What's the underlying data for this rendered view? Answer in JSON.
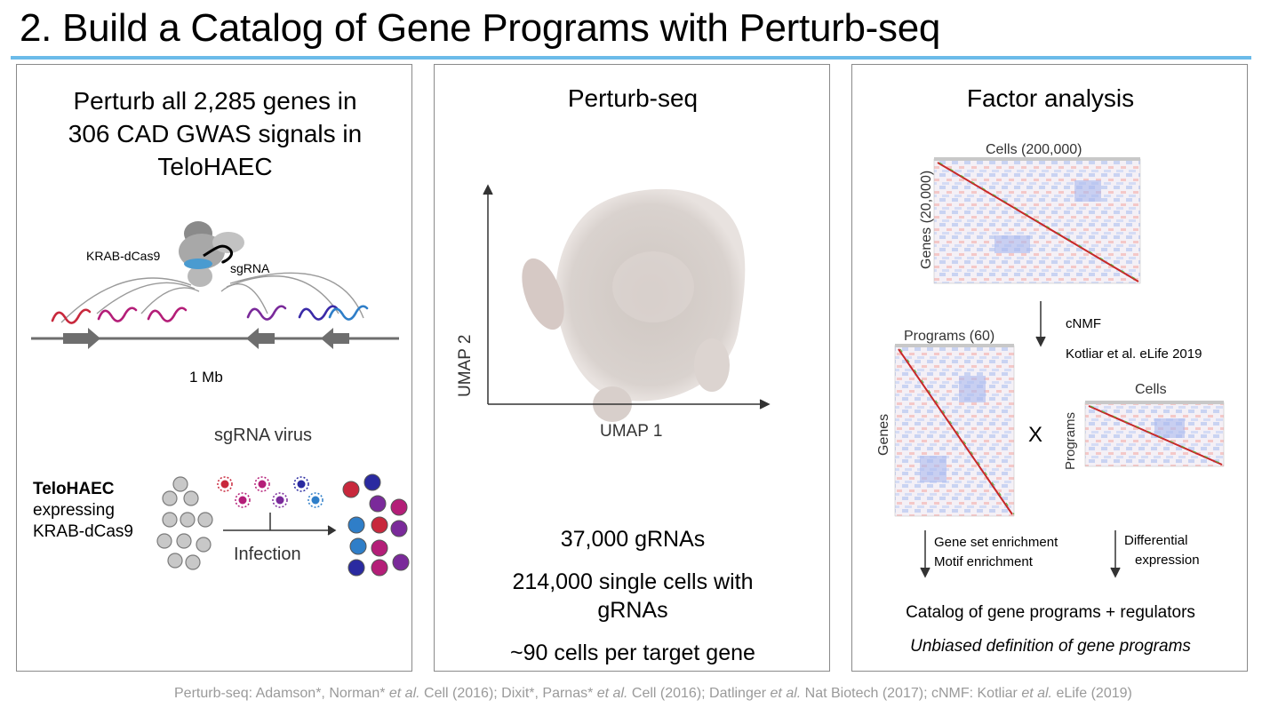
{
  "title": "2. Build a Catalog of Gene Programs with Perturb-seq",
  "panels": {
    "perturb": {
      "heading_lines": [
        "Perturb all 2,285 genes in",
        "306 CAD GWAS signals in",
        "TeloHAEC"
      ],
      "krab_label": "KRAB-dCas9",
      "sgrna_label": "sgRNA",
      "scale_label": "1 Mb",
      "virus_label": "sgRNA virus",
      "cell_line": "TeloHAEC",
      "cell_line_desc": [
        "expressing",
        "KRAB-dCas9"
      ],
      "infection_label": "Infection",
      "colors": {
        "grey_cell": "#c8c8c8",
        "red": "#c8283c",
        "magenta": "#b41e78",
        "purple": "#7a2a9a",
        "navy": "#2a2aa0",
        "blue": "#2f7ec8",
        "arrow_grey": "#6e6e6e"
      }
    },
    "perturbseq": {
      "heading": "Perturb-seq",
      "x_axis": "UMAP 1",
      "y_axis": "UMAP 2",
      "stats": [
        "37,000 gRNAs",
        "214,000 single cells with",
        "gRNAs",
        "~90 cells per target gene"
      ]
    },
    "factor": {
      "heading": "Factor analysis",
      "cells_label": "Cells (200,000)",
      "genes_label": "Genes (20,000)",
      "method": "cNMF",
      "method_ref": "Kotliar et al. eLife 2019",
      "programs_label": "Programs (60)",
      "genes_short": "Genes",
      "times": "X",
      "cells_short": "Cells",
      "programs_short": "Programs",
      "enrichment": [
        "Gene set enrichment",
        "Motif enrichment"
      ],
      "differential": [
        "Differential",
        "expression"
      ],
      "catalog": "Catalog of gene programs + regulators",
      "definition": "Unbiased definition of gene programs"
    }
  },
  "citation": {
    "p1": "Perturb-seq: Adamson*, Norman* ",
    "p1_italic": "et al.",
    "p2": " Cell (2016); Dixit*, Parnas* ",
    "p2_italic": "et al.",
    "p3": " Cell (2016); Datlinger ",
    "p3_italic": "et al.",
    "p4": " Nat Biotech (2017);  cNMF: Kotliar ",
    "p4_italic": "et al.",
    "p5": " eLife (2019)"
  }
}
